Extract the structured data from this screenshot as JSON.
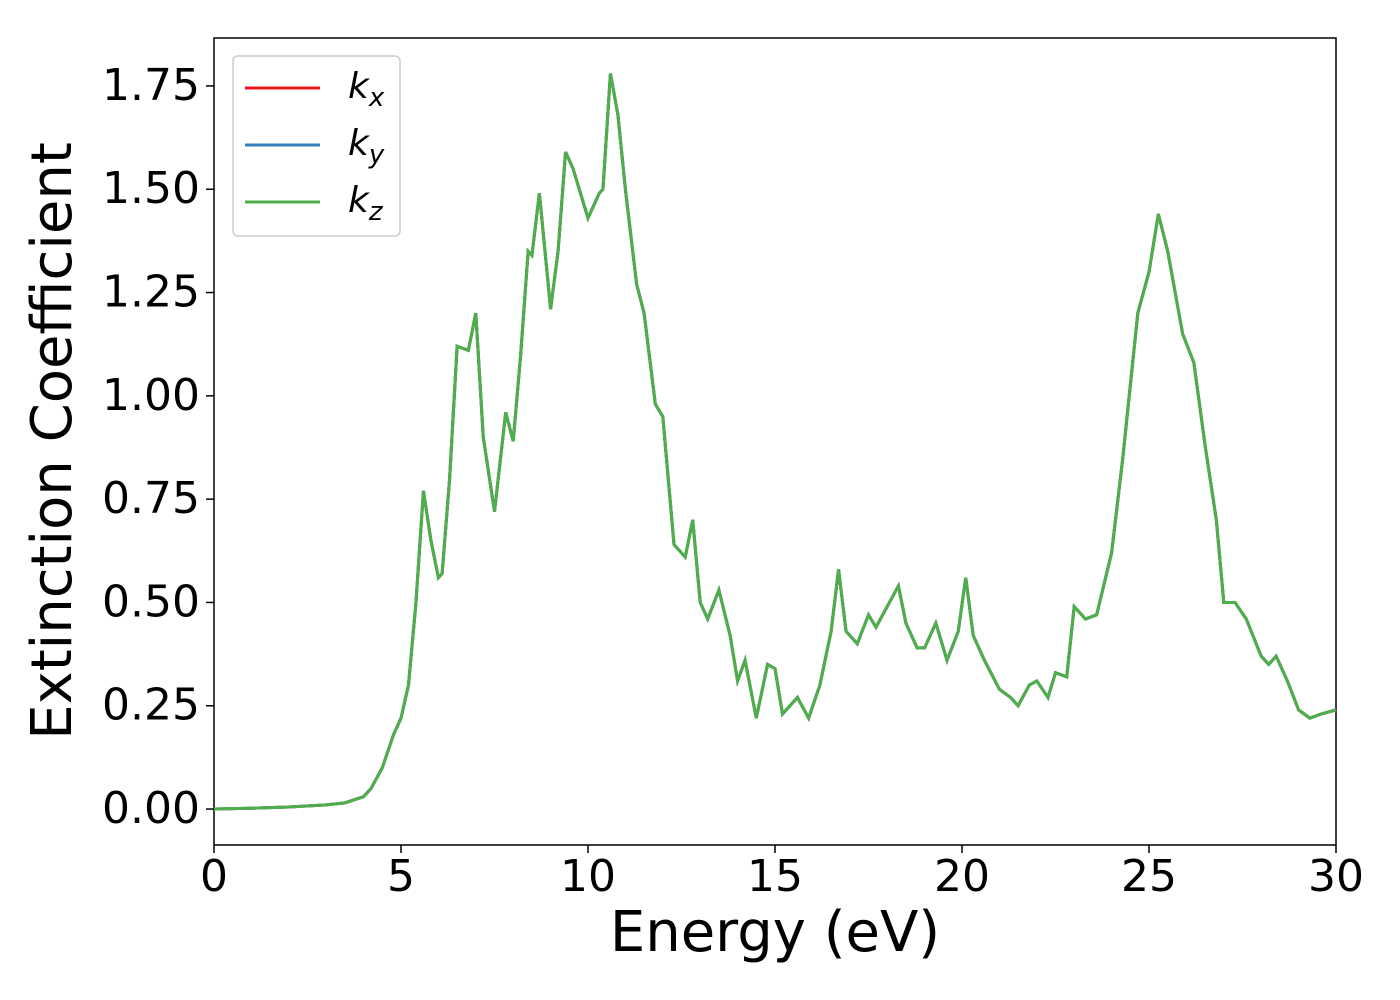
{
  "chart_data": {
    "type": "line",
    "xlabel": "Energy (eV)",
    "ylabel": "Extinction Coefficient",
    "x": [
      0,
      1,
      2,
      3,
      3.5,
      4,
      4.2,
      4.5,
      4.8,
      5,
      5.2,
      5.4,
      5.6,
      5.8,
      6.0,
      6.1,
      6.3,
      6.5,
      6.8,
      7.0,
      7.2,
      7.5,
      7.8,
      8.0,
      8.2,
      8.4,
      8.5,
      8.7,
      9.0,
      9.2,
      9.4,
      9.6,
      10.0,
      10.3,
      10.4,
      10.6,
      10.8,
      11.0,
      11.3,
      11.5,
      11.8,
      12.0,
      12.3,
      12.6,
      12.8,
      13.0,
      13.2,
      13.5,
      13.8,
      14.0,
      14.2,
      14.5,
      14.8,
      15.0,
      15.2,
      15.6,
      15.9,
      16.2,
      16.5,
      16.7,
      16.9,
      17.2,
      17.5,
      17.7,
      18.0,
      18.3,
      18.5,
      18.8,
      19.0,
      19.3,
      19.6,
      19.9,
      20.1,
      20.3,
      20.6,
      21.0,
      21.3,
      21.5,
      21.8,
      22.0,
      22.3,
      22.5,
      22.8,
      23.0,
      23.3,
      23.6,
      24.0,
      24.3,
      24.7,
      25.0,
      25.25,
      25.5,
      25.9,
      26.2,
      26.5,
      26.8,
      27.0,
      27.3,
      27.6,
      28.0,
      28.2,
      28.4,
      28.7,
      29.0,
      29.3,
      29.6,
      30.0
    ],
    "series": [
      {
        "name": "kx",
        "color": "#e41a1c",
        "values": [
          0,
          0.002,
          0.005,
          0.01,
          0.015,
          0.03,
          0.05,
          0.1,
          0.18,
          0.22,
          0.3,
          0.5,
          0.77,
          0.65,
          0.56,
          0.57,
          0.8,
          1.12,
          1.11,
          1.2,
          0.9,
          0.72,
          0.96,
          0.89,
          1.1,
          1.35,
          1.34,
          1.49,
          1.21,
          1.35,
          1.59,
          1.55,
          1.43,
          1.49,
          1.5,
          1.78,
          1.68,
          1.5,
          1.27,
          1.2,
          0.98,
          0.95,
          0.64,
          0.61,
          0.7,
          0.5,
          0.46,
          0.53,
          0.42,
          0.31,
          0.36,
          0.22,
          0.35,
          0.34,
          0.23,
          0.27,
          0.22,
          0.3,
          0.43,
          0.58,
          0.43,
          0.4,
          0.47,
          0.44,
          0.49,
          0.54,
          0.45,
          0.39,
          0.39,
          0.45,
          0.36,
          0.43,
          0.56,
          0.42,
          0.36,
          0.29,
          0.27,
          0.25,
          0.3,
          0.31,
          0.27,
          0.33,
          0.32,
          0.49,
          0.46,
          0.47,
          0.62,
          0.85,
          1.2,
          1.3,
          1.44,
          1.35,
          1.15,
          1.08,
          0.88,
          0.7,
          0.5,
          0.5,
          0.46,
          0.37,
          0.35,
          0.37,
          0.31,
          0.24,
          0.22,
          0.23,
          0.24
        ]
      },
      {
        "name": "ky",
        "color": "#377eb8",
        "values": [
          0,
          0.002,
          0.005,
          0.01,
          0.015,
          0.03,
          0.05,
          0.1,
          0.18,
          0.22,
          0.3,
          0.5,
          0.77,
          0.65,
          0.56,
          0.57,
          0.8,
          1.12,
          1.11,
          1.2,
          0.9,
          0.72,
          0.96,
          0.89,
          1.1,
          1.35,
          1.34,
          1.49,
          1.21,
          1.35,
          1.59,
          1.55,
          1.43,
          1.49,
          1.5,
          1.78,
          1.68,
          1.5,
          1.27,
          1.2,
          0.98,
          0.95,
          0.64,
          0.61,
          0.7,
          0.5,
          0.46,
          0.53,
          0.42,
          0.31,
          0.36,
          0.22,
          0.35,
          0.34,
          0.23,
          0.27,
          0.22,
          0.3,
          0.43,
          0.58,
          0.43,
          0.4,
          0.47,
          0.44,
          0.49,
          0.54,
          0.45,
          0.39,
          0.39,
          0.45,
          0.36,
          0.43,
          0.56,
          0.42,
          0.36,
          0.29,
          0.27,
          0.25,
          0.3,
          0.31,
          0.27,
          0.33,
          0.32,
          0.49,
          0.46,
          0.47,
          0.62,
          0.85,
          1.2,
          1.3,
          1.44,
          1.35,
          1.15,
          1.08,
          0.88,
          0.7,
          0.5,
          0.5,
          0.46,
          0.37,
          0.35,
          0.37,
          0.31,
          0.24,
          0.22,
          0.23,
          0.24
        ]
      },
      {
        "name": "kz",
        "color": "#4daf4a",
        "values": [
          0,
          0.002,
          0.005,
          0.01,
          0.015,
          0.03,
          0.05,
          0.1,
          0.18,
          0.22,
          0.3,
          0.5,
          0.77,
          0.65,
          0.56,
          0.57,
          0.8,
          1.12,
          1.11,
          1.2,
          0.9,
          0.72,
          0.96,
          0.89,
          1.1,
          1.35,
          1.34,
          1.49,
          1.21,
          1.35,
          1.59,
          1.55,
          1.43,
          1.49,
          1.5,
          1.78,
          1.68,
          1.5,
          1.27,
          1.2,
          0.98,
          0.95,
          0.64,
          0.61,
          0.7,
          0.5,
          0.46,
          0.53,
          0.42,
          0.31,
          0.36,
          0.22,
          0.35,
          0.34,
          0.23,
          0.27,
          0.22,
          0.3,
          0.43,
          0.58,
          0.43,
          0.4,
          0.47,
          0.44,
          0.49,
          0.54,
          0.45,
          0.39,
          0.39,
          0.45,
          0.36,
          0.43,
          0.56,
          0.42,
          0.36,
          0.29,
          0.27,
          0.25,
          0.3,
          0.31,
          0.27,
          0.33,
          0.32,
          0.49,
          0.46,
          0.47,
          0.62,
          0.85,
          1.2,
          1.3,
          1.44,
          1.35,
          1.15,
          1.08,
          0.88,
          0.7,
          0.5,
          0.5,
          0.46,
          0.37,
          0.35,
          0.37,
          0.31,
          0.24,
          0.22,
          0.23,
          0.24
        ]
      }
    ],
    "xlim": [
      0,
      30
    ],
    "xticks": [
      0,
      5,
      10,
      15,
      20,
      25,
      30
    ],
    "ylim": [
      -0.087,
      1.866
    ],
    "yticks": [
      {
        "value": 0,
        "label": "0.00"
      },
      {
        "value": 0.25,
        "label": "0.25"
      },
      {
        "value": 0.5,
        "label": "0.50"
      },
      {
        "value": 0.75,
        "label": "0.75"
      },
      {
        "value": 1,
        "label": "1.00"
      },
      {
        "value": 1.25,
        "label": "1.25"
      },
      {
        "value": 1.5,
        "label": "1.50"
      },
      {
        "value": 1.75,
        "label": "1.75"
      }
    ],
    "legend": "upper left",
    "grid": false
  }
}
